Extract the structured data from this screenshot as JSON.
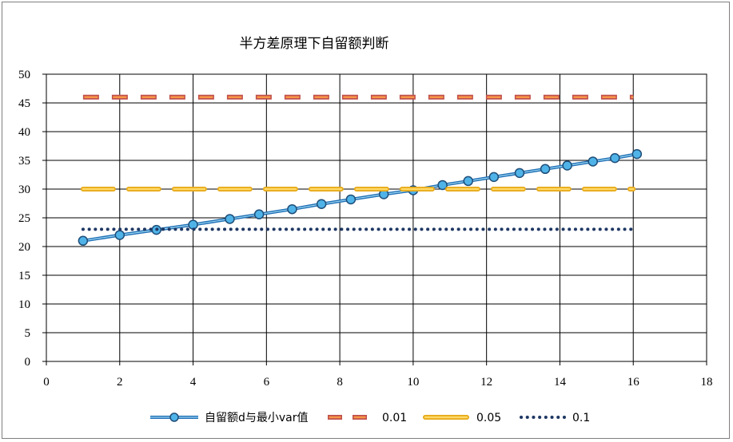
{
  "chart_data": {
    "type": "line",
    "title": "半方差原理下自留额判断",
    "xlabel": "",
    "ylabel": "",
    "xlim": [
      0,
      18
    ],
    "ylim": [
      0,
      50
    ],
    "x_ticks": [
      "0",
      "2",
      "4",
      "6",
      "8",
      "10",
      "12",
      "14",
      "16",
      "18"
    ],
    "y_ticks": [
      "0",
      "5",
      "10",
      "15",
      "20",
      "25",
      "30",
      "35",
      "40",
      "45",
      "50"
    ],
    "grid": true,
    "legend_position": "bottom",
    "series": [
      {
        "name": "自留额d与最小var值",
        "style": "line-marker",
        "color": "#1f6fb5",
        "marker_color": "#4fb3e8",
        "x": [
          1,
          2,
          3,
          4,
          5,
          5.8,
          6.7,
          7.5,
          8.3,
          9.2,
          10,
          10.8,
          11.5,
          12.2,
          12.9,
          13.6,
          14.2,
          14.9,
          15.5,
          16.1
        ],
        "y": [
          21,
          22,
          22.9,
          23.8,
          24.8,
          25.6,
          26.5,
          27.4,
          28.2,
          29.1,
          29.8,
          30.7,
          31.4,
          32.1,
          32.8,
          33.5,
          34.1,
          34.8,
          35.4,
          36.1
        ]
      },
      {
        "name": "0.01",
        "style": "dash",
        "color": "#c0504d",
        "fill_color": "#f79646",
        "x": [
          1,
          16
        ],
        "y": [
          46,
          46
        ]
      },
      {
        "name": "0.05",
        "style": "long-dash",
        "color": "#e6a817",
        "fill_color": "#ffd966",
        "x": [
          1,
          16
        ],
        "y": [
          30,
          30
        ]
      },
      {
        "name": "0.1",
        "style": "dot",
        "color": "#1f3864",
        "x": [
          1,
          16
        ],
        "y": [
          23,
          23
        ]
      }
    ]
  }
}
